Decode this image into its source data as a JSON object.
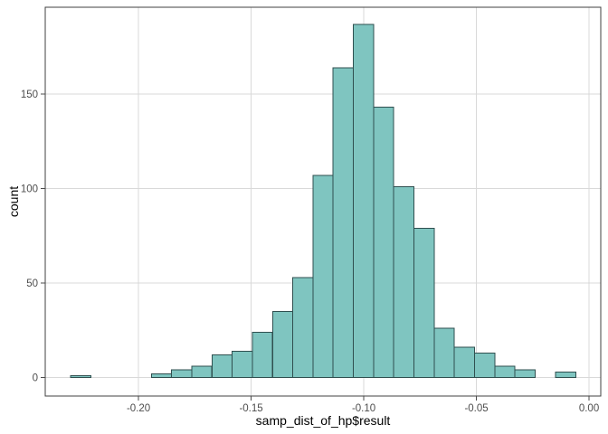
{
  "figure": {
    "x_axis_title": "samp_dist_of_hp$result",
    "y_axis_title": "count"
  },
  "chart_data": {
    "type": "bar",
    "subtype": "histogram",
    "title": "",
    "xlabel": "samp_dist_of_hp$result",
    "ylabel": "count",
    "bin_width": 0.00897,
    "bin_centers": [
      -0.2257,
      -0.2168,
      -0.2078,
      -0.1988,
      -0.1898,
      -0.1809,
      -0.1719,
      -0.1629,
      -0.154,
      -0.145,
      -0.136,
      -0.1271,
      -0.1181,
      -0.1091,
      -0.1001,
      -0.0912,
      -0.0822,
      -0.0732,
      -0.0643,
      -0.0553,
      -0.0463,
      -0.0374,
      -0.0284,
      -0.0194,
      -0.0104
    ],
    "counts": [
      1,
      0,
      0,
      0,
      2,
      4,
      6,
      12,
      14,
      24,
      35,
      53,
      107,
      164,
      187,
      143,
      101,
      79,
      26,
      16,
      13,
      6,
      4,
      0,
      3
    ],
    "total_count": 1000,
    "x_ticks": {
      "values": [
        -0.2,
        -0.15,
        -0.1,
        -0.05,
        0.0
      ],
      "labels": [
        "-0.20",
        "-0.15",
        "-0.10",
        "-0.05",
        "0.00"
      ]
    },
    "y_ticks": {
      "values": [
        0,
        50,
        100,
        150
      ],
      "labels": [
        "0",
        "50",
        "100",
        "150"
      ]
    },
    "xlim": [
      -0.2414,
      0.0052
    ],
    "ylim": [
      -9.8,
      196
    ],
    "grid": true,
    "legend": "none",
    "colors": {
      "bar_fill": "#7FC5C0",
      "bar_stroke": "#2F4F4F",
      "gridline": "#D9D9D9",
      "panel_border": "#404040",
      "tick_mark": "#4D4D4D",
      "tick_text": "#4D4D4D",
      "axis_title_text": "#000000",
      "background": "#FFFFFF"
    }
  }
}
